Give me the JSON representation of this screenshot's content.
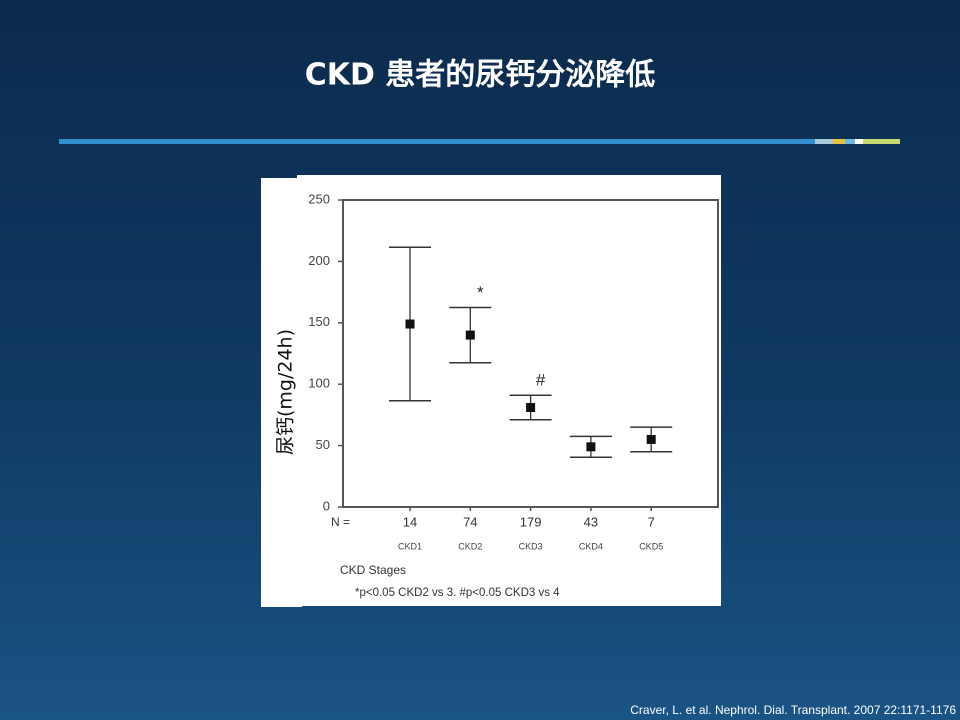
{
  "slide": {
    "title": "CKD 患者的尿钙分泌降低",
    "citation": "Craver, L. et al. Nephrol. Dial. Transplant. 2007 22:1171-1176"
  },
  "chart_data": {
    "type": "errorbar",
    "y_label": "尿钙(mg/24h)",
    "x_label": "CKD Stages",
    "footnote": "*p<0.05 CKD2 vs 3.  #p<0.05 CKD3 vs 4",
    "categories": [
      "CKD1",
      "CKD2",
      "CKD3",
      "CKD4",
      "CKD5"
    ],
    "n_label": "N =",
    "n_values": [
      14,
      74,
      179,
      43,
      7
    ],
    "values": [
      149,
      140,
      81,
      49,
      55
    ],
    "errors": [
      62.5,
      22.5,
      10,
      8.5,
      10
    ],
    "annotations": [
      null,
      "*",
      "#",
      null,
      null
    ],
    "color": "#111111",
    "ylim": [
      0,
      250
    ],
    "yticks": [
      0,
      50,
      100,
      150,
      200,
      250
    ],
    "grid": false
  }
}
